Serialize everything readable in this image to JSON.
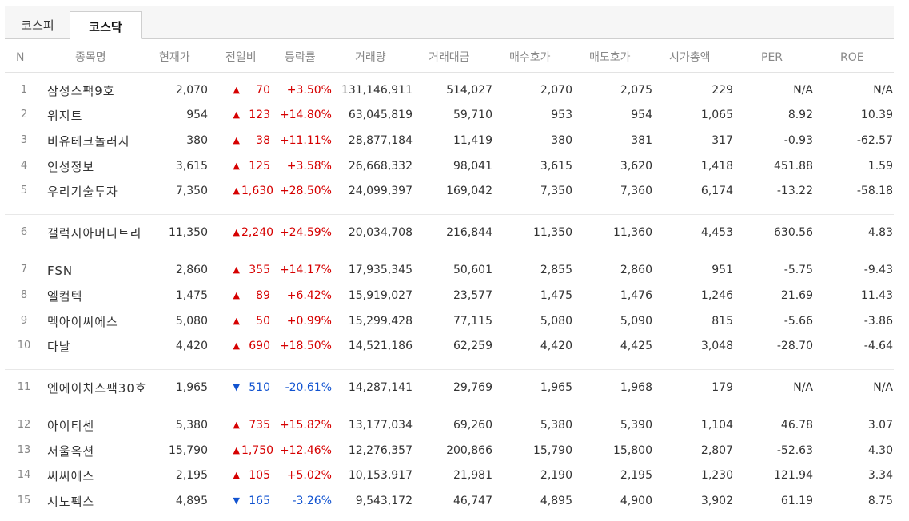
{
  "tabs": [
    "코스피",
    "코스닥"
  ],
  "headers": {
    "n": "N",
    "name": "종목명",
    "current": "현재가",
    "change": "전일비",
    "rate": "등락률",
    "volume": "거래량",
    "amount": "거래대금",
    "bid": "매수호가",
    "ask": "매도호가",
    "cap": "시가총액",
    "per": "PER",
    "roe": "ROE"
  },
  "colors": {
    "up": "#d60000",
    "down": "#1153d0"
  },
  "rows": [
    {
      "n": "1",
      "name": "삼성스팩9호",
      "current": "2,070",
      "dir": "up",
      "arrow": "▲",
      "change": "70",
      "rate": "+3.50%",
      "volume": "131,146,911",
      "amount": "514,027",
      "bid": "2,070",
      "ask": "2,075",
      "cap": "229",
      "per": "N/A",
      "roe": "N/A"
    },
    {
      "n": "2",
      "name": "위지트",
      "current": "954",
      "dir": "up",
      "arrow": "▲",
      "change": "123",
      "rate": "+14.80%",
      "volume": "63,045,819",
      "amount": "59,710",
      "bid": "953",
      "ask": "954",
      "cap": "1,065",
      "per": "8.92",
      "roe": "10.39"
    },
    {
      "n": "3",
      "name": "비유테크놀러지",
      "current": "380",
      "dir": "up",
      "arrow": "▲",
      "change": "38",
      "rate": "+11.11%",
      "volume": "28,877,184",
      "amount": "11,419",
      "bid": "380",
      "ask": "381",
      "cap": "317",
      "per": "-0.93",
      "roe": "-62.57"
    },
    {
      "n": "4",
      "name": "인성정보",
      "current": "3,615",
      "dir": "up",
      "arrow": "▲",
      "change": "125",
      "rate": "+3.58%",
      "volume": "26,668,332",
      "amount": "98,041",
      "bid": "3,615",
      "ask": "3,620",
      "cap": "1,418",
      "per": "451.88",
      "roe": "1.59"
    },
    {
      "n": "5",
      "name": "우리기술투자",
      "current": "7,350",
      "dir": "up",
      "arrow": "▲",
      "change": "1,630",
      "rate": "+28.50%",
      "volume": "24,099,397",
      "amount": "169,042",
      "bid": "7,350",
      "ask": "7,360",
      "cap": "6,174",
      "per": "-13.22",
      "roe": "-58.18"
    },
    {
      "n": "6",
      "name": "갤럭시아머니트리",
      "current": "11,350",
      "dir": "up",
      "arrow": "▲",
      "change": "2,240",
      "rate": "+24.59%",
      "volume": "20,034,708",
      "amount": "216,844",
      "bid": "11,350",
      "ask": "11,360",
      "cap": "4,453",
      "per": "630.56",
      "roe": "4.83"
    },
    {
      "n": "7",
      "name": "FSN",
      "current": "2,860",
      "dir": "up",
      "arrow": "▲",
      "change": "355",
      "rate": "+14.17%",
      "volume": "17,935,345",
      "amount": "50,601",
      "bid": "2,855",
      "ask": "2,860",
      "cap": "951",
      "per": "-5.75",
      "roe": "-9.43"
    },
    {
      "n": "8",
      "name": "엘컴텍",
      "current": "1,475",
      "dir": "up",
      "arrow": "▲",
      "change": "89",
      "rate": "+6.42%",
      "volume": "15,919,027",
      "amount": "23,577",
      "bid": "1,475",
      "ask": "1,476",
      "cap": "1,246",
      "per": "21.69",
      "roe": "11.43"
    },
    {
      "n": "9",
      "name": "멕아이씨에스",
      "current": "5,080",
      "dir": "up",
      "arrow": "▲",
      "change": "50",
      "rate": "+0.99%",
      "volume": "15,299,428",
      "amount": "77,115",
      "bid": "5,080",
      "ask": "5,090",
      "cap": "815",
      "per": "-5.66",
      "roe": "-3.86"
    },
    {
      "n": "10",
      "name": "다날",
      "current": "4,420",
      "dir": "up",
      "arrow": "▲",
      "change": "690",
      "rate": "+18.50%",
      "volume": "14,521,186",
      "amount": "62,259",
      "bid": "4,420",
      "ask": "4,425",
      "cap": "3,048",
      "per": "-28.70",
      "roe": "-4.64"
    },
    {
      "n": "11",
      "name": "엔에이치스팩30호",
      "current": "1,965",
      "dir": "down",
      "arrow": "▼",
      "change": "510",
      "rate": "-20.61%",
      "volume": "14,287,141",
      "amount": "29,769",
      "bid": "1,965",
      "ask": "1,968",
      "cap": "179",
      "per": "N/A",
      "roe": "N/A"
    },
    {
      "n": "12",
      "name": "아이티센",
      "current": "5,380",
      "dir": "up",
      "arrow": "▲",
      "change": "735",
      "rate": "+15.82%",
      "volume": "13,177,034",
      "amount": "69,260",
      "bid": "5,380",
      "ask": "5,390",
      "cap": "1,104",
      "per": "46.78",
      "roe": "3.07"
    },
    {
      "n": "13",
      "name": "서울옥션",
      "current": "15,790",
      "dir": "up",
      "arrow": "▲",
      "change": "1,750",
      "rate": "+12.46%",
      "volume": "12,276,357",
      "amount": "200,866",
      "bid": "15,790",
      "ask": "15,800",
      "cap": "2,807",
      "per": "-52.63",
      "roe": "4.30"
    },
    {
      "n": "14",
      "name": "씨씨에스",
      "current": "2,195",
      "dir": "up",
      "arrow": "▲",
      "change": "105",
      "rate": "+5.02%",
      "volume": "10,153,917",
      "amount": "21,981",
      "bid": "2,190",
      "ask": "2,195",
      "cap": "1,230",
      "per": "121.94",
      "roe": "3.34"
    },
    {
      "n": "15",
      "name": "시노펙스",
      "current": "4,895",
      "dir": "down",
      "arrow": "▼",
      "change": "165",
      "rate": "-3.26%",
      "volume": "9,543,172",
      "amount": "46,747",
      "bid": "4,895",
      "ask": "4,900",
      "cap": "3,902",
      "per": "61.19",
      "roe": "8.75"
    }
  ]
}
